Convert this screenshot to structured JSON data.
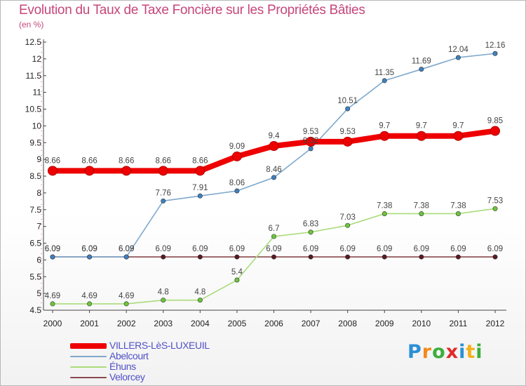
{
  "title": "Evolution du Taux de Taxe Foncière sur les Propriétés Bâties",
  "subtitle": "(en %)",
  "brand": {
    "text": "Proxiti",
    "letters": [
      {
        "ch": "P",
        "color": "#2a8fd6"
      },
      {
        "ch": "r",
        "color": "#f28a1c"
      },
      {
        "ch": "o",
        "color": "#3cae3c"
      },
      {
        "ch": "x",
        "color": "#e02a2a"
      },
      {
        "ch": "i",
        "color": "#2a8fd6"
      },
      {
        "ch": "t",
        "color": "#f2b21c"
      },
      {
        "ch": "i",
        "color": "#3cae3c"
      }
    ]
  },
  "chart_data": {
    "type": "line",
    "title": "Evolution du Taux de Taxe Foncière sur les Propriétés Bâties",
    "ylabel": "(en %)",
    "xlabel": "",
    "x": [
      "2000",
      "2001",
      "2002",
      "2003",
      "2004",
      "2005",
      "2006",
      "2007",
      "2008",
      "2009",
      "2010",
      "2011",
      "2012"
    ],
    "ylim": [
      4.5,
      12.5
    ],
    "yticks": [
      "4.5",
      "5",
      "5.5",
      "6",
      "6.5",
      "7",
      "7.5",
      "8",
      "8.5",
      "9",
      "9.5",
      "10",
      "10.5",
      "11",
      "11.5",
      "12",
      "12.5"
    ],
    "grid": false,
    "legend": "bottom-left",
    "series": [
      {
        "name": "VILLERS-LèS-LUXEUIL",
        "color": "#ee0000",
        "values": [
          8.66,
          8.66,
          8.66,
          8.66,
          8.66,
          9.09,
          9.4,
          9.53,
          9.53,
          9.7,
          9.7,
          9.7,
          9.85
        ],
        "labels": [
          "8.66",
          "8.66",
          "8.66",
          "8.66",
          "8.66",
          "9.09",
          "9.4",
          "9.53",
          "9.53",
          "9.7",
          "9.7",
          "9.7",
          "9.85"
        ]
      },
      {
        "name": "Abelcourt",
        "color": "#7fa8cc",
        "marker": "#3f80c0",
        "values": [
          6.09,
          6.09,
          6.09,
          7.76,
          7.91,
          8.06,
          8.46,
          9.32,
          10.51,
          11.35,
          11.69,
          12.04,
          12.16
        ],
        "labels": [
          "6.09",
          "6.09",
          "6.09",
          "7.76",
          "7.91",
          "8.06",
          "8.46",
          "9.32",
          "10.51",
          "11.35",
          "11.69",
          "12.04",
          "12.16"
        ]
      },
      {
        "name": "Éhuns",
        "color": "#a9dc7a",
        "marker": "#6cc63a",
        "values": [
          4.69,
          4.69,
          4.69,
          4.8,
          4.8,
          5.4,
          6.7,
          6.83,
          7.03,
          7.38,
          7.38,
          7.38,
          7.53
        ],
        "labels": [
          "4.69",
          "4.69",
          "4.69",
          "4.8",
          "4.8",
          "5.4",
          "6.7",
          "6.83",
          "7.03",
          "7.38",
          "7.38",
          "7.38",
          "7.53"
        ]
      },
      {
        "name": "Velorcey",
        "color": "#8a4a4e",
        "marker": "#5a1a20",
        "values": [
          6.09,
          6.09,
          6.09,
          6.09,
          6.09,
          6.09,
          6.09,
          6.09,
          6.09,
          6.09,
          6.09,
          6.09,
          6.09
        ],
        "labels": [
          "6.09",
          "6.09",
          "6.09",
          "6.09",
          "6.09",
          "6.09",
          "6.09",
          "6.09",
          "6.09",
          "6.09",
          "6.09",
          "6.09",
          "6.09"
        ]
      }
    ]
  }
}
